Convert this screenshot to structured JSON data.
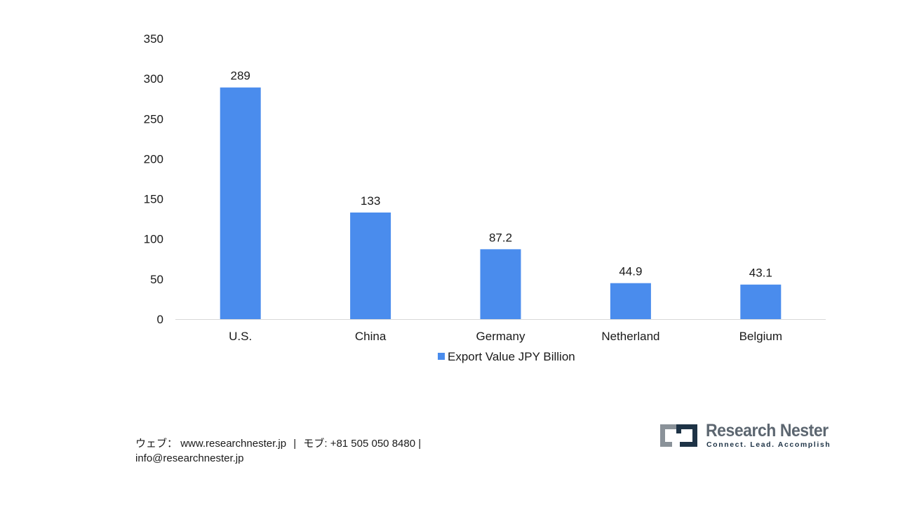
{
  "chart_data": {
    "type": "bar",
    "categories": [
      "U.S.",
      "China",
      "Germany",
      "Netherland",
      "Belgium"
    ],
    "series": [
      {
        "name": "Export Value JPY Billion",
        "values": [
          289,
          133,
          87.2,
          44.9,
          43.1
        ],
        "labels": [
          "289",
          "133",
          "87.2",
          "44.9",
          "43.1"
        ],
        "color": "#4a8ced"
      }
    ],
    "y_ticks": [
      "0",
      "50",
      "100",
      "150",
      "200",
      "250",
      "300",
      "350"
    ],
    "ylim": [
      0,
      350
    ],
    "grid": false,
    "legend_position": "bottom"
  },
  "footer": {
    "web_label": "ウェブ：",
    "web_url": "www.researchnester.jp",
    "separator": "|",
    "phone_label": "モブ:",
    "phone": "+81 505 050 8480",
    "email": "info@researchnester.jp"
  },
  "logo": {
    "name": "Research Nester",
    "tagline": "Connect. Lead. Accomplish",
    "colors": {
      "mark_gray": "#8a9299",
      "mark_navy": "#1e3346"
    }
  }
}
